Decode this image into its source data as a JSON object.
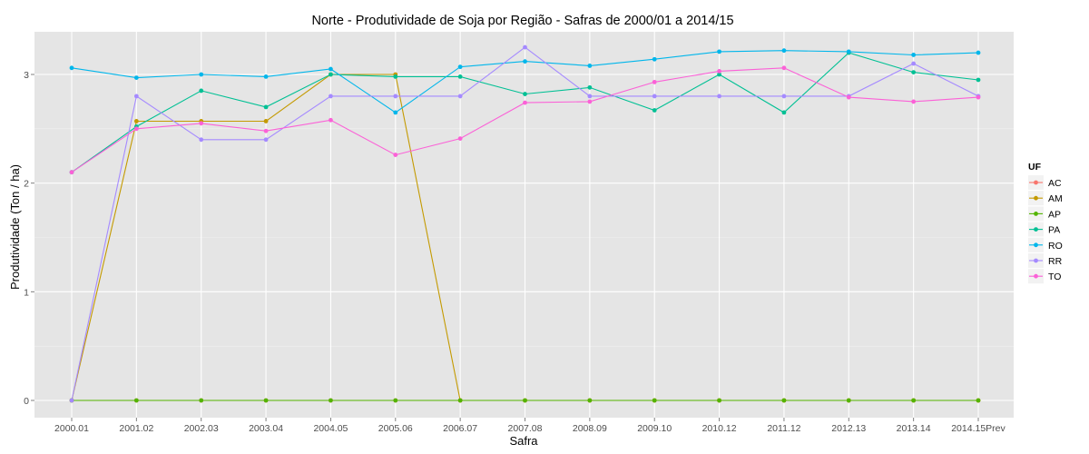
{
  "chart_data": {
    "type": "line",
    "title": "Norte  - Produtividade de Soja por Região - Safras de 2000/01 a 2014/15",
    "xlabel": "Safra",
    "ylabel": "Produtividade (Ton / ha)",
    "categories": [
      "2000.01",
      "2001.02",
      "2002.03",
      "2003.04",
      "2004.05",
      "2005.06",
      "2006.07",
      "2007.08",
      "2008.09",
      "2009.10",
      "2010.12",
      "2011.12",
      "2012.13",
      "2013.14",
      "2014.15Prev"
    ],
    "ylim": [
      -0.17,
      3.42
    ],
    "yticks": [
      0,
      1,
      2,
      3
    ],
    "grid": true,
    "legend": {
      "title": "UF",
      "position": "right"
    },
    "series": [
      {
        "name": "AC",
        "color": "#F8766D",
        "values": [
          0,
          0,
          0,
          0,
          0,
          0,
          0,
          0,
          0,
          0,
          0,
          0,
          0,
          0,
          0
        ]
      },
      {
        "name": "AM",
        "color": "#C49A00",
        "values": [
          0,
          2.57,
          2.57,
          2.57,
          3.0,
          3.0,
          0,
          0,
          0,
          0,
          0,
          0,
          0,
          0,
          0
        ]
      },
      {
        "name": "AP",
        "color": "#53B400",
        "values": [
          0,
          0,
          0,
          0,
          0,
          0,
          0,
          0,
          0,
          0,
          0,
          0,
          0,
          0,
          0
        ]
      },
      {
        "name": "PA",
        "color": "#00C094",
        "values": [
          2.1,
          2.52,
          2.85,
          2.7,
          3.0,
          2.98,
          2.98,
          2.82,
          2.88,
          2.67,
          3.0,
          2.65,
          3.2,
          3.02,
          2.95
        ]
      },
      {
        "name": "RO",
        "color": "#00B6EB",
        "values": [
          3.06,
          2.97,
          3.0,
          2.98,
          3.05,
          2.65,
          3.07,
          3.12,
          3.08,
          3.14,
          3.21,
          3.22,
          3.21,
          3.18,
          3.2
        ]
      },
      {
        "name": "RR",
        "color": "#A58AFF",
        "values": [
          0,
          2.8,
          2.4,
          2.4,
          2.8,
          2.8,
          2.8,
          3.25,
          2.8,
          2.8,
          2.8,
          2.8,
          2.8,
          3.1,
          2.8
        ]
      },
      {
        "name": "TO",
        "color": "#FB61D7",
        "values": [
          2.1,
          2.5,
          2.55,
          2.48,
          2.58,
          2.26,
          2.41,
          2.74,
          2.75,
          2.93,
          3.03,
          3.06,
          2.79,
          2.75,
          2.79
        ]
      }
    ]
  }
}
